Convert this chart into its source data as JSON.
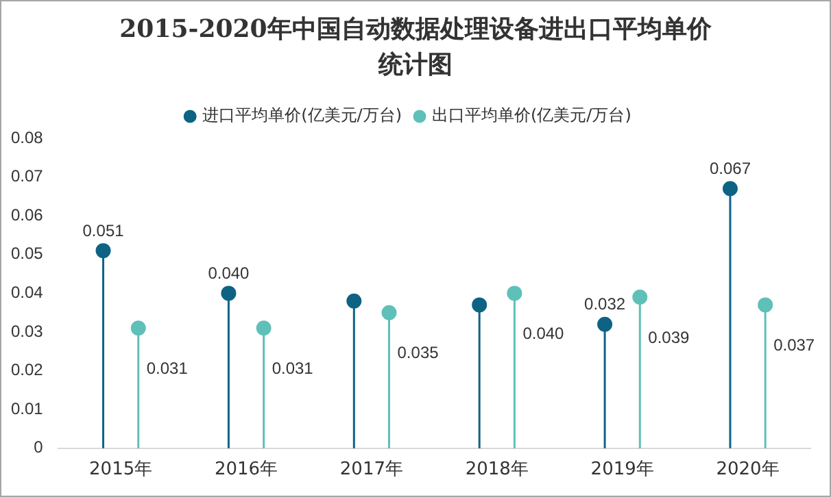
{
  "chart_data": {
    "type": "lollipop",
    "title": "2015-2020年中国自动数据处理设备进出口平均单价统计图",
    "categories": [
      "2015年",
      "2016年",
      "2017年",
      "2018年",
      "2019年",
      "2020年"
    ],
    "series": [
      {
        "name": "进口平均单价(亿美元/万台)",
        "color": "#0e6385",
        "values": [
          0.051,
          0.04,
          0.038,
          0.037,
          0.032,
          0.067
        ],
        "value_labels": [
          "0.051",
          "0.040",
          null,
          null,
          "0.032",
          "0.067"
        ]
      },
      {
        "name": "出口平均单价(亿美元/万台)",
        "color": "#5fc0b8",
        "values": [
          0.031,
          0.031,
          0.035,
          0.04,
          0.039,
          0.037
        ],
        "value_labels": [
          "0.031",
          "0.031",
          "0.035",
          "0.040",
          "0.039",
          "0.037"
        ]
      }
    ],
    "ylim": [
      0,
      0.08
    ],
    "yticks": [
      0,
      0.01,
      0.02,
      0.03,
      0.04,
      0.05,
      0.06,
      0.07,
      0.08
    ],
    "grid": false,
    "legend": "top",
    "marker": "circle"
  }
}
